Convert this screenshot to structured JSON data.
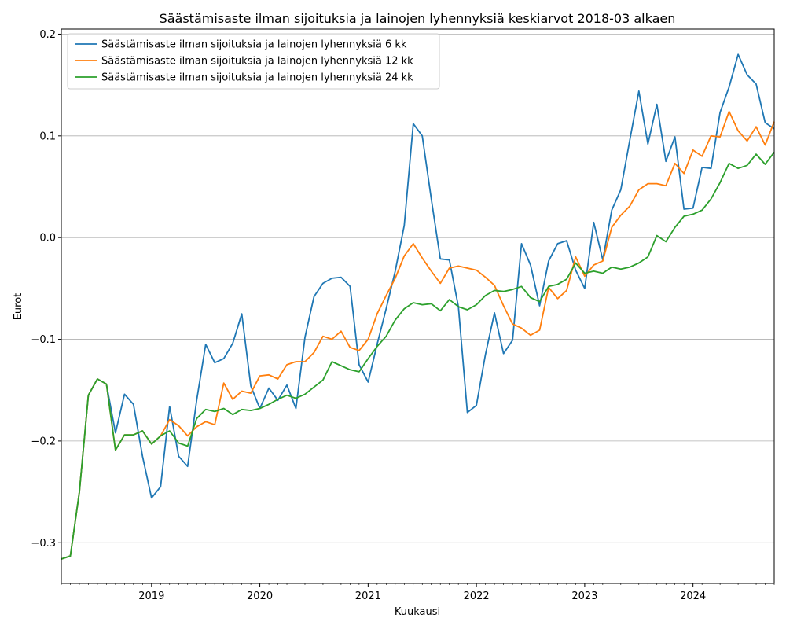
{
  "chart_data": {
    "type": "line",
    "title": "Säästämisaste ilman sijoituksia ja lainojen lyhennyksiä keskiarvot 2018-03 alkaen",
    "xlabel": "Kuukausi",
    "ylabel": "Eurot",
    "x_start": "2018-03",
    "x_end": "2024-10",
    "x_ticks": [
      "2019",
      "2020",
      "2021",
      "2022",
      "2023",
      "2024"
    ],
    "ylim": [
      -0.34,
      0.205
    ],
    "y_ticks": [
      -0.3,
      -0.2,
      -0.1,
      0.0,
      0.1,
      0.2
    ],
    "y_tick_labels": [
      "−0.3",
      "−0.2",
      "−0.1",
      "0.0",
      "0.1",
      "0.2"
    ],
    "grid": "horizontal",
    "legend_position": "top-left",
    "colors": [
      "#1f77b4",
      "#ff7f0e",
      "#2ca02c"
    ],
    "series": [
      {
        "name": "Säästämisaste ilman sijoituksia ja lainojen lyhennyksiä 6 kk",
        "values": [
          -0.316,
          -0.313,
          -0.25,
          -0.155,
          -0.139,
          -0.144,
          -0.192,
          -0.154,
          -0.164,
          -0.215,
          -0.256,
          -0.245,
          -0.166,
          -0.215,
          -0.225,
          -0.16,
          -0.105,
          -0.123,
          -0.119,
          -0.104,
          -0.075,
          -0.146,
          -0.168,
          -0.148,
          -0.16,
          -0.145,
          -0.168,
          -0.098,
          -0.058,
          -0.045,
          -0.04,
          -0.039,
          -0.048,
          -0.125,
          -0.142,
          -0.105,
          -0.07,
          -0.033,
          0.012,
          0.112,
          0.1,
          0.038,
          -0.021,
          -0.022,
          -0.068,
          -0.172,
          -0.165,
          -0.115,
          -0.074,
          -0.114,
          -0.101,
          -0.006,
          -0.027,
          -0.067,
          -0.023,
          -0.006,
          -0.003,
          -0.032,
          -0.05,
          0.015,
          -0.022,
          0.027,
          0.047,
          0.096,
          0.144,
          0.092,
          0.131,
          0.075,
          0.099,
          0.028,
          0.029,
          0.069,
          0.068,
          0.123,
          0.148,
          0.18,
          0.16,
          0.151,
          0.113,
          0.107
        ]
      },
      {
        "name": "Säästämisaste ilman sijoituksia ja lainojen lyhennyksiä 12 kk",
        "values": [
          -0.316,
          -0.313,
          -0.25,
          -0.155,
          -0.139,
          -0.144,
          -0.209,
          -0.194,
          -0.194,
          -0.19,
          -0.203,
          -0.195,
          -0.179,
          -0.185,
          -0.195,
          -0.186,
          -0.181,
          -0.184,
          -0.143,
          -0.159,
          -0.151,
          -0.153,
          -0.136,
          -0.135,
          -0.139,
          -0.125,
          -0.122,
          -0.122,
          -0.113,
          -0.097,
          -0.1,
          -0.092,
          -0.108,
          -0.111,
          -0.1,
          -0.075,
          -0.057,
          -0.04,
          -0.018,
          -0.006,
          -0.02,
          -0.033,
          -0.045,
          -0.03,
          -0.028,
          -0.03,
          -0.032,
          -0.039,
          -0.047,
          -0.067,
          -0.085,
          -0.089,
          -0.096,
          -0.091,
          -0.049,
          -0.06,
          -0.052,
          -0.019,
          -0.038,
          -0.027,
          -0.023,
          0.01,
          0.022,
          0.031,
          0.047,
          0.053,
          0.053,
          0.051,
          0.073,
          0.063,
          0.086,
          0.08,
          0.1,
          0.099,
          0.124,
          0.105,
          0.095,
          0.109,
          0.091,
          0.114
        ]
      },
      {
        "name": "Säästämisaste ilman sijoituksia ja lainojen lyhennyksiä 24 kk",
        "values": [
          -0.316,
          -0.313,
          -0.25,
          -0.155,
          -0.139,
          -0.144,
          -0.209,
          -0.194,
          -0.194,
          -0.19,
          -0.203,
          -0.195,
          -0.19,
          -0.202,
          -0.205,
          -0.178,
          -0.169,
          -0.171,
          -0.168,
          -0.174,
          -0.169,
          -0.17,
          -0.168,
          -0.164,
          -0.159,
          -0.155,
          -0.158,
          -0.154,
          -0.147,
          -0.14,
          -0.122,
          -0.126,
          -0.13,
          -0.132,
          -0.119,
          -0.107,
          -0.097,
          -0.081,
          -0.07,
          -0.064,
          -0.066,
          -0.065,
          -0.072,
          -0.061,
          -0.068,
          -0.071,
          -0.066,
          -0.057,
          -0.052,
          -0.053,
          -0.051,
          -0.048,
          -0.059,
          -0.063,
          -0.048,
          -0.046,
          -0.041,
          -0.025,
          -0.035,
          -0.033,
          -0.035,
          -0.029,
          -0.031,
          -0.029,
          -0.025,
          -0.019,
          0.002,
          -0.004,
          0.01,
          0.021,
          0.023,
          0.027,
          0.038,
          0.054,
          0.073,
          0.068,
          0.071,
          0.082,
          0.072,
          0.084
        ]
      }
    ]
  }
}
